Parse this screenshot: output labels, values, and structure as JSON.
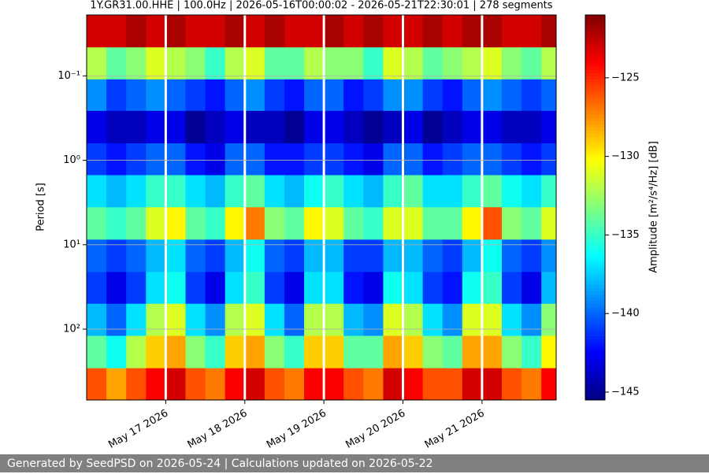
{
  "chart_data": {
    "type": "heatmap",
    "title": "1Y.GR31.00.HHE | 100.0Hz | 2026-05-16T00:00:02 - 2026-05-21T22:30:01 | 278 segments",
    "ylabel": "Period [s]",
    "colorbar_label": "Amplitude [m²/s⁴/Hz] [dB]",
    "xlim": [
      "2026-05-16T00:00:02",
      "2026-05-21T22:30:01"
    ],
    "xticks": [
      {
        "value": "2026-05-17",
        "label": "May 17 2026"
      },
      {
        "value": "2026-05-18",
        "label": "May 18 2026"
      },
      {
        "value": "2026-05-19",
        "label": "May 19 2026"
      },
      {
        "value": "2026-05-20",
        "label": "May 20 2026"
      },
      {
        "value": "2026-05-21",
        "label": "May 21 2026"
      }
    ],
    "ylim": [
      0.019,
      690
    ],
    "log_y": true,
    "y_inverted": true,
    "yticks": [
      {
        "value": 0.1,
        "label": "10⁻¹"
      },
      {
        "value": 1,
        "label": "10⁰"
      },
      {
        "value": 10,
        "label": "10¹"
      },
      {
        "value": 100,
        "label": "10²"
      }
    ],
    "grid": true,
    "clim": [
      -145.5,
      -121
    ],
    "cticks": [
      {
        "value": -125,
        "label": "−125"
      },
      {
        "value": -130,
        "label": "−130"
      },
      {
        "value": -135,
        "label": "−135"
      },
      {
        "value": -140,
        "label": "−140"
      },
      {
        "value": -145,
        "label": "−145"
      }
    ],
    "colormap": "jet",
    "gap_color": "#ffffff",
    "gaps": [
      "2026-05-17",
      "2026-05-18",
      "2026-05-19",
      "2026-05-20",
      "2026-05-21"
    ],
    "xbins": [
      "2026-05-16T00:00:02",
      "2026-05-16T06:00:00",
      "2026-05-16T12:00:00",
      "2026-05-16T18:00:00",
      "2026-05-17T00:00:00",
      "2026-05-17T06:00:00",
      "2026-05-17T12:00:00",
      "2026-05-17T18:00:00",
      "2026-05-18T00:00:00",
      "2026-05-18T06:00:00",
      "2026-05-18T12:00:00",
      "2026-05-18T18:00:00",
      "2026-05-19T00:00:00",
      "2026-05-19T06:00:00",
      "2026-05-19T12:00:00",
      "2026-05-19T18:00:00",
      "2026-05-20T00:00:00",
      "2026-05-20T06:00:00",
      "2026-05-20T12:00:00",
      "2026-05-20T18:00:00",
      "2026-05-21T00:00:00",
      "2026-05-21T06:00:00",
      "2026-05-21T12:00:00",
      "2026-05-21T18:00:00",
      "2026-05-21T22:30:01"
    ],
    "ybins": [
      0.019,
      0.046,
      0.11,
      0.26,
      0.63,
      1.5,
      3.6,
      8.7,
      21,
      50,
      120,
      290,
      690
    ],
    "z": [
      [
        -123,
        -123,
        -122,
        -123,
        -122,
        -123,
        -123,
        -122,
        -123,
        -122,
        -123,
        -123,
        -122,
        -123,
        -122,
        -123,
        -123,
        -122,
        -123,
        -122,
        -122,
        -123,
        -123,
        -122
      ],
      [
        -132,
        -134,
        -133,
        -131,
        -132,
        -133,
        -135,
        -132,
        -131,
        -134,
        -134,
        -132,
        -133,
        -133,
        -135,
        -131,
        -132,
        -134,
        -133,
        -132,
        -131,
        -133,
        -134,
        -132
      ],
      [
        -139,
        -141,
        -140,
        -139,
        -140,
        -141,
        -142,
        -140,
        -139,
        -141,
        -142,
        -140,
        -140,
        -142,
        -141,
        -139,
        -139,
        -141,
        -142,
        -140,
        -139,
        -140,
        -141,
        -140
      ],
      [
        -143,
        -144,
        -144,
        -143,
        -143,
        -145,
        -144,
        -143,
        -144,
        -144,
        -145,
        -143,
        -143,
        -144,
        -145,
        -144,
        -143,
        -145,
        -144,
        -143,
        -143,
        -144,
        -144,
        -143
      ],
      [
        -141,
        -142,
        -141,
        -140,
        -140,
        -142,
        -143,
        -140,
        -140,
        -142,
        -142,
        -141,
        -141,
        -142,
        -143,
        -140,
        -140,
        -142,
        -141,
        -140,
        -140,
        -141,
        -142,
        -141
      ],
      [
        -137,
        -138,
        -137,
        -135,
        -135,
        -137,
        -138,
        -135,
        -134,
        -137,
        -138,
        -136,
        -135,
        -137,
        -138,
        -135,
        -134,
        -137,
        -137,
        -135,
        -134,
        -136,
        -137,
        -135
      ],
      [
        -134,
        -135,
        -134,
        -131,
        -130,
        -134,
        -135,
        -130,
        -127,
        -133,
        -134,
        -130,
        -131,
        -134,
        -135,
        -131,
        -131,
        -134,
        -134,
        -130,
        -126,
        -133,
        -134,
        -131
      ],
      [
        -140,
        -141,
        -140,
        -138,
        -137,
        -140,
        -141,
        -138,
        -136,
        -140,
        -141,
        -138,
        -138,
        -141,
        -141,
        -138,
        -138,
        -140,
        -141,
        -138,
        -136,
        -140,
        -141,
        -139
      ],
      [
        -141,
        -143,
        -141,
        -137,
        -136,
        -141,
        -143,
        -137,
        -135,
        -141,
        -143,
        -137,
        -137,
        -142,
        -143,
        -136,
        -137,
        -141,
        -142,
        -136,
        -135,
        -141,
        -143,
        -138
      ],
      [
        -138,
        -140,
        -137,
        -132,
        -131,
        -137,
        -139,
        -132,
        -131,
        -137,
        -140,
        -132,
        -132,
        -138,
        -139,
        -131,
        -132,
        -137,
        -139,
        -131,
        -131,
        -137,
        -139,
        -133
      ],
      [
        -134,
        -136,
        -132,
        -129,
        -128,
        -133,
        -135,
        -129,
        -128,
        -133,
        -135,
        -129,
        -129,
        -134,
        -134,
        -128,
        -129,
        -133,
        -134,
        -128,
        -128,
        -133,
        -135,
        -130
      ],
      [
        -126,
        -128,
        -126,
        -124,
        -123,
        -126,
        -127,
        -124,
        -123,
        -126,
        -127,
        -124,
        -124,
        -126,
        -127,
        -123,
        -124,
        -126,
        -126,
        -123,
        -123,
        -126,
        -127,
        -124
      ]
    ]
  },
  "footer": "Generated by SeedPSD on 2026-05-24 | Calculations updated on 2026-05-22"
}
